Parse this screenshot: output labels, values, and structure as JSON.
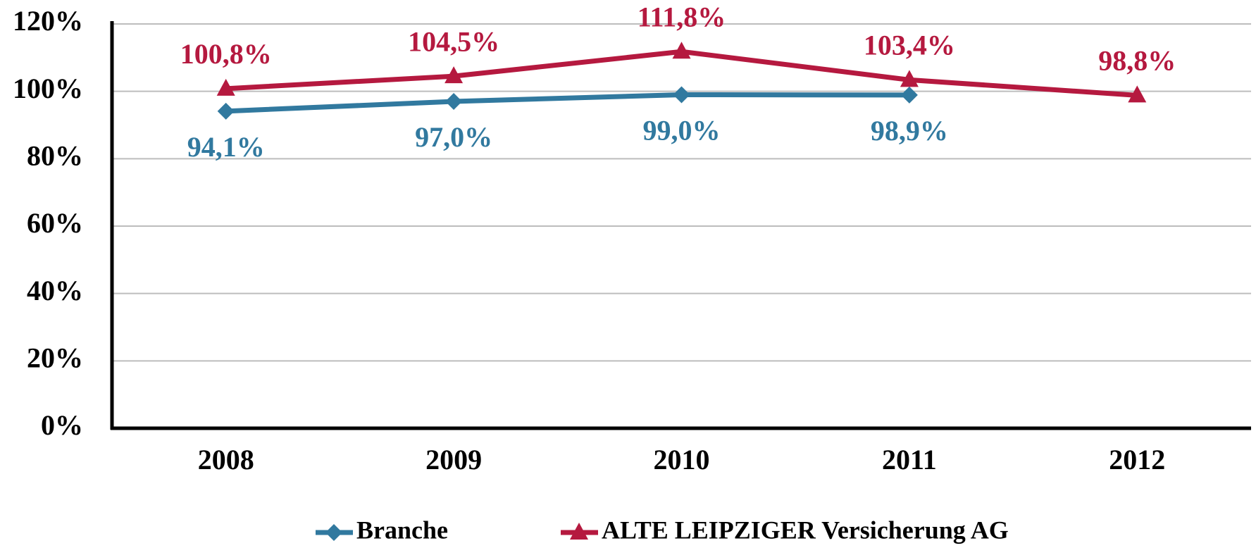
{
  "chart_data": {
    "type": "line",
    "categories": [
      "2008",
      "2009",
      "2010",
      "2011",
      "2012"
    ],
    "series": [
      {
        "name": "Branche",
        "color": "#31799f",
        "marker": "diamond",
        "values": [
          94.1,
          97.0,
          99.0,
          98.9,
          null
        ],
        "value_labels": [
          "94,1%",
          "97,0%",
          "99,0%",
          "98,9%",
          null
        ]
      },
      {
        "name": "ALTE LEIPZIGER Versicherung AG",
        "color": "#b5193f",
        "marker": "triangle",
        "values": [
          100.8,
          104.5,
          111.8,
          103.4,
          98.8
        ],
        "value_labels": [
          "100,8%",
          "104,5%",
          "111,8%",
          "103,4%",
          "98,8%"
        ]
      }
    ],
    "ylim": [
      0,
      120
    ],
    "yticks": [
      {
        "value": 0,
        "label": "0%"
      },
      {
        "value": 20,
        "label": "20%"
      },
      {
        "value": 40,
        "label": "40%"
      },
      {
        "value": 60,
        "label": "60%"
      },
      {
        "value": 80,
        "label": "80%"
      },
      {
        "value": 100,
        "label": "100%"
      },
      {
        "value": 120,
        "label": "120%"
      }
    ],
    "grid": true,
    "legend": "bottom"
  }
}
